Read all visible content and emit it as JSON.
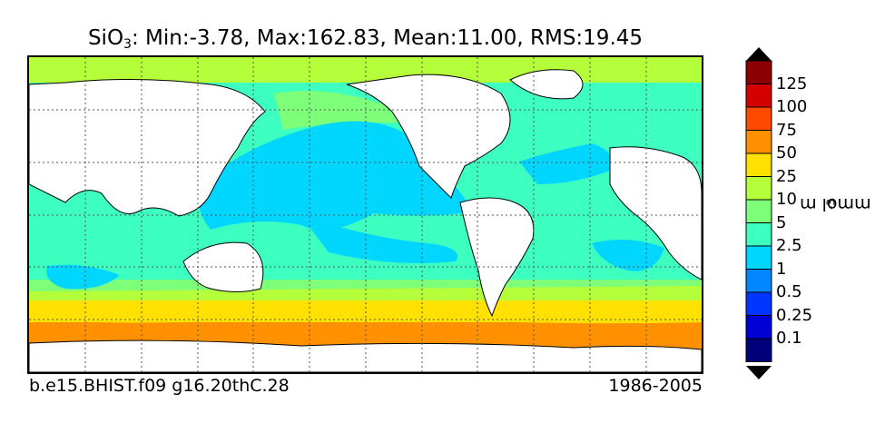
{
  "title": {
    "species": "SiO",
    "subscript": "3",
    "stats": ": Min:-3.78, Max:162.83, Mean:11.00, RMS:19.45"
  },
  "footer": {
    "case_name": "b.e15.BHIST.f09 g16.20thC.28",
    "period": "1986-2005"
  },
  "colorbar": {
    "unit_base": "mmol m",
    "unit_exp": "-3",
    "labels": [
      "125",
      "100",
      "75",
      "50",
      "25",
      "10",
      "5",
      "2.5",
      "1",
      "0.5",
      "0.25",
      "0.1"
    ],
    "colors": [
      "#8b0000",
      "#d40000",
      "#ff4a00",
      "#ff9100",
      "#ffe100",
      "#b4ff3a",
      "#7dff7a",
      "#3cffc0",
      "#00d6ff",
      "#0087ff",
      "#0035ff",
      "#0000d4",
      "#00007a"
    ],
    "under_color": "#000000",
    "over_color": "#000000"
  },
  "map": {
    "land_color": "#ffffff",
    "grid": true,
    "projection": "cylindrical",
    "lon_center": 180
  }
}
